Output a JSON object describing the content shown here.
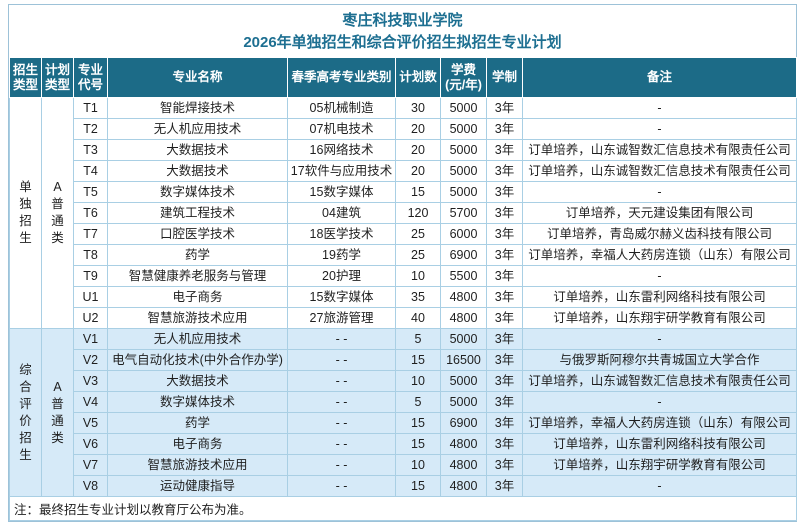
{
  "page": {
    "title_line1": "枣庄科技职业学院",
    "title_line2": "2026年单独招生和综合评价招生拟招生专业计划",
    "footnote": "注：最终招生专业计划以教育厅公布为准。"
  },
  "colors": {
    "header_bg": "#1c6b87",
    "header_text": "#ffffff",
    "title_color": "#1d6f91",
    "sec2_bg": "#d6eaf8",
    "grid": "#a9cfe4",
    "outer": "#9dc2d8",
    "body_text": "#1f1f1f"
  },
  "table": {
    "headers": [
      "招生\n类型",
      "计划\n类型",
      "专业\n代号",
      "专业名称",
      "春季高考专业类别",
      "计划数",
      "学费\n(元/年)",
      "学制",
      "备注"
    ],
    "groups": [
      {
        "enroll_type": "单\n独\n招\n生",
        "plan_type": "A\n普\n通\n类",
        "rows": [
          {
            "code": "T1",
            "major": "智能焊接技术",
            "category": "05机械制造",
            "plan": "30",
            "fee": "5000",
            "years": "3年",
            "remark": "-"
          },
          {
            "code": "T2",
            "major": "无人机应用技术",
            "category": "07机电技术",
            "plan": "20",
            "fee": "5000",
            "years": "3年",
            "remark": "-"
          },
          {
            "code": "T3",
            "major": "大数据技术",
            "category": "16网络技术",
            "plan": "20",
            "fee": "5000",
            "years": "3年",
            "remark": "订单培养，山东诚智数汇信息技术有限责任公司"
          },
          {
            "code": "T4",
            "major": "大数据技术",
            "category": "17软件与应用技术",
            "plan": "20",
            "fee": "5000",
            "years": "3年",
            "remark": "订单培养，山东诚智数汇信息技术有限责任公司"
          },
          {
            "code": "T5",
            "major": "数字媒体技术",
            "category": "15数字媒体",
            "plan": "15",
            "fee": "5000",
            "years": "3年",
            "remark": "-"
          },
          {
            "code": "T6",
            "major": "建筑工程技术",
            "category": "04建筑",
            "plan": "120",
            "fee": "5700",
            "years": "3年",
            "remark": "订单培养，天元建设集团有限公司"
          },
          {
            "code": "T7",
            "major": "口腔医学技术",
            "category": "18医学技术",
            "plan": "25",
            "fee": "6000",
            "years": "3年",
            "remark": "订单培养，青岛威尔赫义齿科技有限公司"
          },
          {
            "code": "T8",
            "major": "药学",
            "category": "19药学",
            "plan": "25",
            "fee": "6900",
            "years": "3年",
            "remark": "订单培养，幸福人大药房连锁（山东）有限公司"
          },
          {
            "code": "T9",
            "major": "智慧健康养老服务与管理",
            "category": "20护理",
            "plan": "10",
            "fee": "5500",
            "years": "3年",
            "remark": "-"
          },
          {
            "code": "U1",
            "major": "电子商务",
            "category": "15数字媒体",
            "plan": "35",
            "fee": "4800",
            "years": "3年",
            "remark": "订单培养，山东雷利网络科技有限公司"
          },
          {
            "code": "U2",
            "major": "智慧旅游技术应用",
            "category": "27旅游管理",
            "plan": "40",
            "fee": "4800",
            "years": "3年",
            "remark": "订单培养，山东翔宇研学教育有限公司"
          }
        ]
      },
      {
        "enroll_type": "综\n合\n评\n价\n招\n生",
        "plan_type": "A\n普\n通\n类",
        "rows": [
          {
            "code": "V1",
            "major": "无人机应用技术",
            "category": "- -",
            "plan": "5",
            "fee": "5000",
            "years": "3年",
            "remark": "-"
          },
          {
            "code": "V2",
            "major": "电气自动化技术(中外合作办学)",
            "category": "- -",
            "plan": "15",
            "fee": "16500",
            "years": "3年",
            "remark": "与俄罗斯阿穆尔共青城国立大学合作"
          },
          {
            "code": "V3",
            "major": "大数据技术",
            "category": "- -",
            "plan": "10",
            "fee": "5000",
            "years": "3年",
            "remark": "订单培养，山东诚智数汇信息技术有限责任公司"
          },
          {
            "code": "V4",
            "major": "数字媒体技术",
            "category": "- -",
            "plan": "5",
            "fee": "5000",
            "years": "3年",
            "remark": "-"
          },
          {
            "code": "V5",
            "major": "药学",
            "category": "- -",
            "plan": "15",
            "fee": "6900",
            "years": "3年",
            "remark": "订单培养，幸福人大药房连锁（山东）有限公司"
          },
          {
            "code": "V6",
            "major": "电子商务",
            "category": "- -",
            "plan": "15",
            "fee": "4800",
            "years": "3年",
            "remark": "订单培养，山东雷利网络科技有限公司"
          },
          {
            "code": "V7",
            "major": "智慧旅游技术应用",
            "category": "- -",
            "plan": "10",
            "fee": "4800",
            "years": "3年",
            "remark": "订单培养，山东翔宇研学教育有限公司"
          },
          {
            "code": "V8",
            "major": "运动健康指导",
            "category": "- -",
            "plan": "15",
            "fee": "4800",
            "years": "3年",
            "remark": "-"
          }
        ]
      }
    ]
  }
}
